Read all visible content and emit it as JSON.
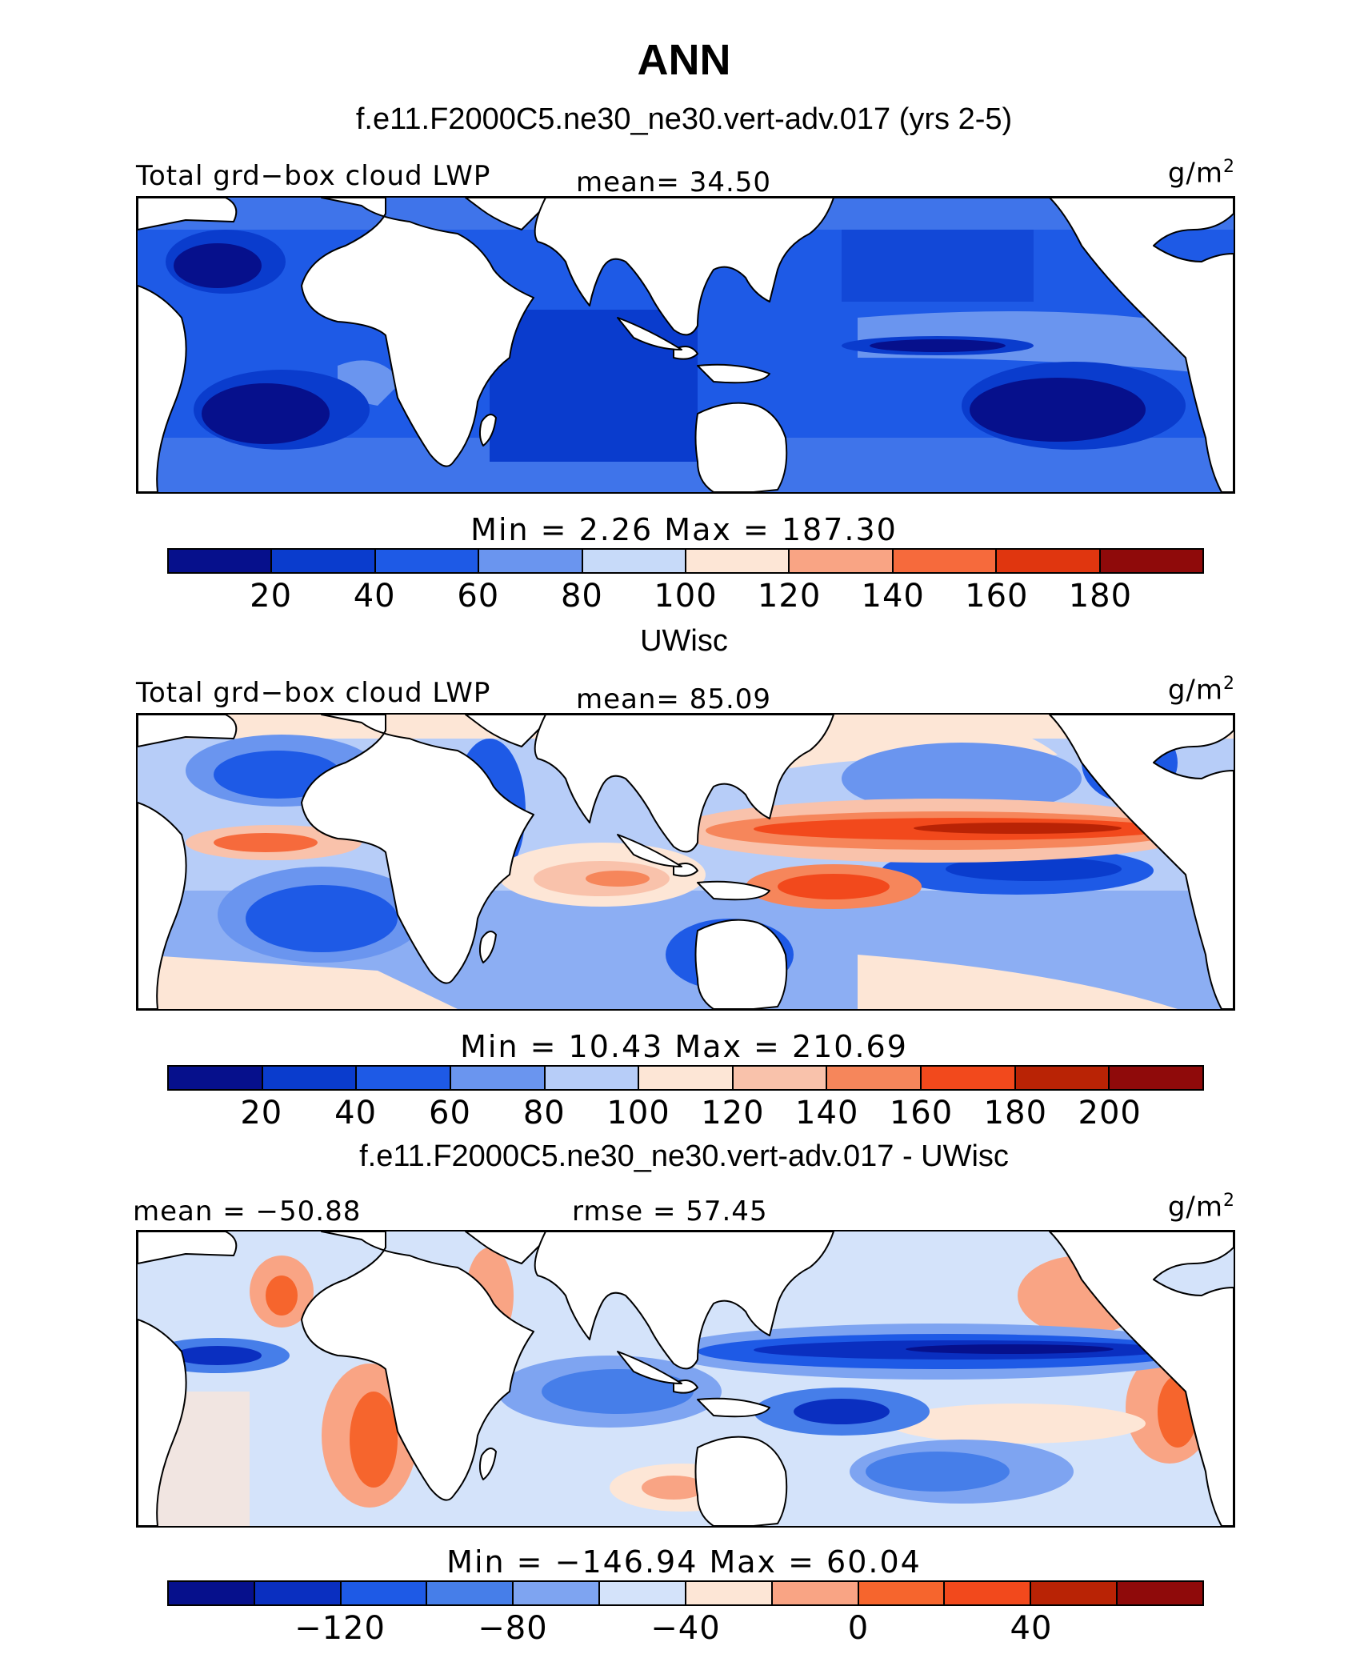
{
  "title": "ANN",
  "panels": [
    {
      "heading": "f.e11.F2000C5.ne30_ne30.vert-adv.017 (yrs 2-5)",
      "left_label": "Total grd−box cloud LWP",
      "center_label": "mean=  34.50",
      "unit": "g/m",
      "unit_exp": "2",
      "minmax": "Min  =    2.26  Max  =  187.30",
      "colorbar": {
        "colors": [
          "#06108c",
          "#0a3ccd",
          "#1e5ae6",
          "#6a95ef",
          "#c7daf9",
          "#fde6d6",
          "#f9a484",
          "#f66a3c",
          "#e0360f",
          "#8f0a0a"
        ],
        "ticks": [
          "20",
          "40",
          "60",
          "80",
          "100",
          "120",
          "140",
          "160",
          "180"
        ]
      }
    },
    {
      "heading": "UWisc",
      "left_label": "Total grd−box cloud LWP",
      "center_label": "mean=  85.09",
      "unit": "g/m",
      "unit_exp": "2",
      "minmax": "Min  =   10.43  Max  =  210.69",
      "colorbar": {
        "colors": [
          "#06108c",
          "#0a3ccd",
          "#1e5ae6",
          "#6a95ef",
          "#b7cdf8",
          "#fde6d6",
          "#f9c2ab",
          "#f6865b",
          "#f2491c",
          "#b92305",
          "#8f0a0a"
        ],
        "ticks": [
          "20",
          "40",
          "60",
          "80",
          "100",
          "120",
          "140",
          "160",
          "180",
          "200"
        ]
      }
    },
    {
      "heading": "f.e11.F2000C5.ne30_ne30.vert-adv.017 - UWisc",
      "left_label": "mean = −50.88",
      "center_label": "rmse =  57.45",
      "unit": "g/m",
      "unit_exp": "2",
      "minmax": "Min  = −146.94  Max  =   60.04",
      "colorbar": {
        "colors": [
          "#06108c",
          "#0a2fc0",
          "#1e5ae6",
          "#467ee9",
          "#7ea4f1",
          "#d4e3fa",
          "#fde6d6",
          "#f9a484",
          "#f6652d",
          "#f2491c",
          "#b92305",
          "#8f0a0a"
        ],
        "ticks": [
          "−120",
          "−80",
          "−40",
          "0",
          "40"
        ]
      }
    }
  ]
}
